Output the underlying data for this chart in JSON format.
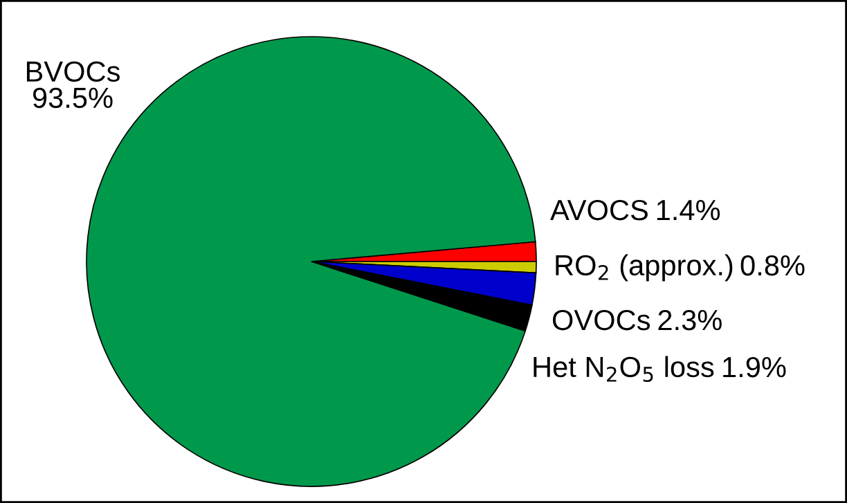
{
  "chart_data": {
    "type": "pie",
    "categories": [
      "AVOCS",
      "RO$_{2}$ (approx.)",
      "OVOCs",
      "Het N$_{2}$O$_{5}$ loss",
      "BVOCs"
    ],
    "values": [
      1.4,
      0.8,
      2.3,
      1.9,
      93.5
    ],
    "colors": [
      "#ff0000",
      "#cccc00",
      "#0000cc",
      "#000000",
      "#00994c"
    ],
    "value_labels": [
      "1.4%",
      "0.8%",
      "2.3%",
      "1.9%",
      "93.5%"
    ]
  }
}
